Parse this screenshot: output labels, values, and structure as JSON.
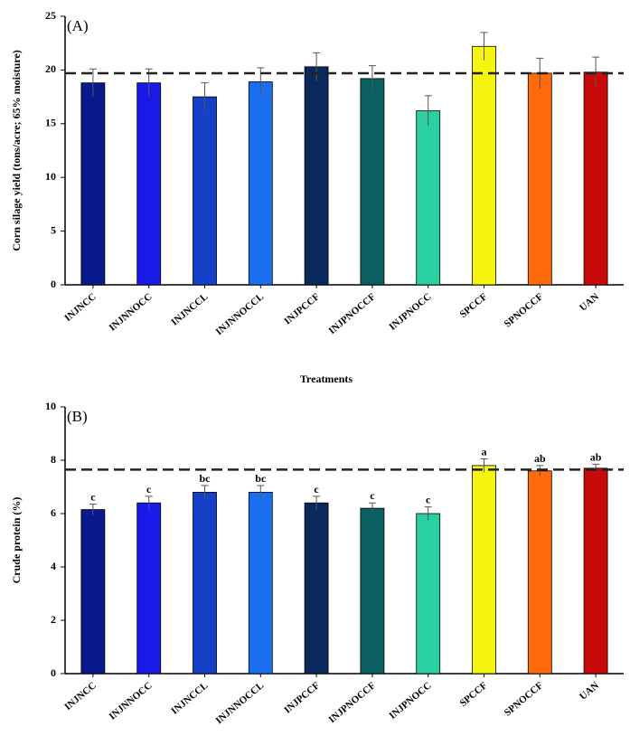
{
  "chart_data": [
    {
      "type": "bar",
      "panel_label": "(A)",
      "y_label": "Corn silage yield (tons/acre; 65% moisture)",
      "x_label": "Treatments",
      "categories": [
        "INJNCC",
        "INJNNOCC",
        "INJNCCL",
        "INJNNOCCL",
        "INJPCCF",
        "INJPNOCCF",
        "INJPNOCC",
        "SPCCF",
        "SPNOCCF",
        "UAN"
      ],
      "values": [
        18.8,
        18.8,
        17.5,
        18.9,
        20.3,
        19.2,
        16.2,
        22.2,
        19.7,
        19.8
      ],
      "errors": [
        1.3,
        1.3,
        1.3,
        1.3,
        1.3,
        1.2,
        1.4,
        1.3,
        1.4,
        1.4
      ],
      "colors": [
        "#0a1a8c",
        "#1a1ae8",
        "#1540c8",
        "#1a6ef0",
        "#0a2a5e",
        "#0a6060",
        "#2ad0a0",
        "#f5f510",
        "#ff6a0a",
        "#c80a0a"
      ],
      "reference_line": 19.7,
      "ylim": [
        0,
        25
      ],
      "yticks": [
        0,
        5,
        10,
        15,
        20,
        25
      ]
    },
    {
      "type": "bar",
      "panel_label": "(B)",
      "y_label": "Crude protein (%)",
      "categories": [
        "INJNCC",
        "INJNNOCC",
        "INJNCCL",
        "INJNNOCCL",
        "INJPCCF",
        "INJPNOCCF",
        "INJPNOCC",
        "SPCCF",
        "SPNOCCF",
        "UAN"
      ],
      "values": [
        6.15,
        6.4,
        6.8,
        6.8,
        6.4,
        6.2,
        6.0,
        7.8,
        7.6,
        7.7
      ],
      "errors": [
        0.2,
        0.25,
        0.25,
        0.25,
        0.25,
        0.2,
        0.25,
        0.25,
        0.2,
        0.15
      ],
      "annotations": [
        "c",
        "c",
        "bc",
        "bc",
        "c",
        "c",
        "c",
        "a",
        "ab",
        "ab"
      ],
      "colors": [
        "#0a1a8c",
        "#1a1ae8",
        "#1540c8",
        "#1a6ef0",
        "#0a2a5e",
        "#0a6060",
        "#2ad0a0",
        "#f5f510",
        "#ff6a0a",
        "#c80a0a"
      ],
      "reference_line": 7.65,
      "ylim": [
        0,
        10
      ],
      "yticks": [
        0,
        2,
        4,
        6,
        8,
        10
      ]
    }
  ]
}
